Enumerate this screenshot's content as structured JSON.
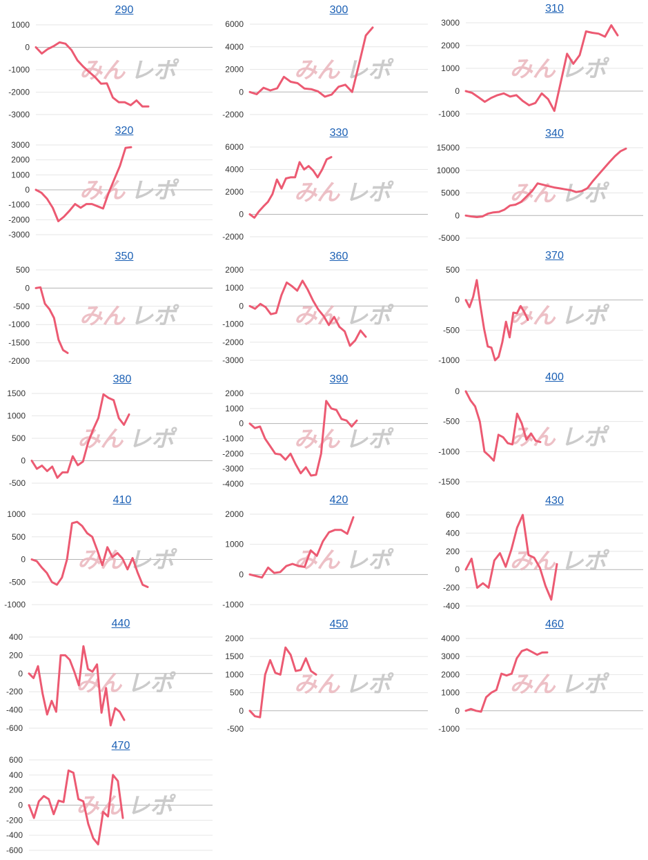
{
  "colors": {
    "series": "#ec5a72",
    "title": "#1a5fb4",
    "watermark_left": "#eab6bd",
    "watermark_right": "#c6c6c6"
  },
  "watermark": {
    "left": "みん",
    "right": "レポ"
  },
  "chart_data": [
    {
      "type": "line",
      "title": "290",
      "ylim": [
        -3000,
        1000
      ],
      "yticks": [
        1000,
        0,
        -1000,
        -2000,
        -3000
      ],
      "series": [
        {
          "values": [
            0,
            -280,
            -80,
            50,
            220,
            160,
            -120,
            -580,
            -860,
            -1100,
            -1330,
            -1620,
            -1610,
            -2240,
            -2450,
            -2450,
            -2580,
            -2370,
            -2640,
            -2640
          ]
        }
      ]
    },
    {
      "type": "line",
      "title": "300",
      "ylim": [
        -2000,
        6000
      ],
      "yticks": [
        6000,
        4000,
        2000,
        0,
        -2000
      ],
      "series": [
        {
          "values": [
            0,
            -200,
            370,
            140,
            320,
            1340,
            900,
            780,
            310,
            250,
            50,
            -420,
            -220,
            460,
            640,
            0,
            2450,
            5000,
            5700
          ]
        }
      ]
    },
    {
      "type": "line",
      "title": "310",
      "ylim": [
        -1000,
        3000
      ],
      "yticks": [
        3000,
        2000,
        1000,
        0,
        -1000
      ],
      "series": [
        {
          "values": [
            0,
            -80,
            -270,
            -470,
            -300,
            -180,
            -100,
            -240,
            -180,
            -430,
            -620,
            -520,
            -100,
            -350,
            -870,
            380,
            1640,
            1200,
            1580,
            2620,
            2560,
            2520,
            2390,
            2890,
            2450
          ]
        }
      ]
    },
    {
      "type": "line",
      "title": "320",
      "ylim": [
        -3000,
        3000
      ],
      "yticks": [
        3000,
        2000,
        1000,
        0,
        -1000,
        -2000,
        -3000
      ],
      "series": [
        {
          "values": [
            0,
            -200,
            -600,
            -1200,
            -2100,
            -1800,
            -1400,
            -950,
            -1200,
            -950,
            -950,
            -1100,
            -1250,
            -200,
            700,
            1600,
            2800,
            2850
          ]
        }
      ]
    },
    {
      "type": "line",
      "title": "330",
      "ylim": [
        -2000,
        6000
      ],
      "yticks": [
        6000,
        4000,
        2000,
        0,
        -2000
      ],
      "series": [
        {
          "values": [
            0,
            -300,
            250,
            700,
            1100,
            1800,
            3100,
            2300,
            3200,
            3300,
            3300,
            4650,
            4000,
            4300,
            3900,
            3300,
            4000,
            4900,
            5100
          ]
        }
      ]
    },
    {
      "type": "line",
      "title": "340",
      "ylim": [
        -5000,
        15000
      ],
      "yticks": [
        15000,
        10000,
        5000,
        0,
        -5000
      ],
      "series": [
        {
          "values": [
            0,
            -200,
            -350,
            -200,
            400,
            700,
            800,
            1300,
            2200,
            2400,
            3000,
            4200,
            5400,
            7100,
            6800,
            6500,
            6200,
            6000,
            5800,
            5600,
            5200,
            5400,
            6000,
            7600,
            9000,
            10400,
            11800,
            13100,
            14200,
            14800
          ]
        }
      ]
    },
    {
      "type": "line",
      "title": "350",
      "ylim": [
        -2000,
        500
      ],
      "yticks": [
        500,
        0,
        -500,
        -1000,
        -1500,
        -2000
      ],
      "series": [
        {
          "values": [
            0,
            20,
            -430,
            -580,
            -820,
            -1420,
            -1700,
            -1780
          ]
        }
      ]
    },
    {
      "type": "line",
      "title": "360",
      "ylim": [
        -3000,
        2000
      ],
      "yticks": [
        2000,
        1000,
        0,
        -1000,
        -2000,
        -3000
      ],
      "series": [
        {
          "values": [
            0,
            -150,
            120,
            -60,
            -450,
            -380,
            600,
            1300,
            1100,
            850,
            1400,
            900,
            300,
            -200,
            -550,
            -1050,
            -600,
            -1150,
            -1400,
            -2200,
            -1900,
            -1350,
            -1700
          ]
        }
      ]
    },
    {
      "type": "line",
      "title": "370",
      "ylim": [
        -1000,
        500
      ],
      "yticks": [
        500,
        0,
        -500,
        -1000
      ],
      "series": [
        {
          "values": [
            0,
            -120,
            50,
            330,
            -100,
            -480,
            -770,
            -790,
            -1000,
            -940,
            -700,
            -360,
            -620,
            -210,
            -220,
            -100,
            -200,
            -330
          ]
        }
      ]
    },
    {
      "type": "line",
      "title": "380",
      "ylim": [
        -500,
        1500
      ],
      "yticks": [
        1500,
        1000,
        500,
        0,
        -500
      ],
      "series": [
        {
          "values": [
            0,
            -180,
            -110,
            -230,
            -130,
            -380,
            -260,
            -260,
            100,
            -100,
            -20,
            400,
            700,
            950,
            1480,
            1400,
            1350,
            950,
            800,
            1030
          ]
        }
      ]
    },
    {
      "type": "line",
      "title": "390",
      "ylim": [
        -4000,
        2000
      ],
      "yticks": [
        2000,
        1000,
        0,
        -1000,
        -2000,
        -3000,
        -4000
      ],
      "series": [
        {
          "values": [
            0,
            -300,
            -200,
            -1000,
            -1500,
            -2000,
            -2050,
            -2400,
            -2000,
            -2700,
            -3300,
            -2900,
            -3450,
            -3400,
            -2000,
            1500,
            1000,
            900,
            300,
            200,
            -200,
            200
          ]
        }
      ]
    },
    {
      "type": "line",
      "title": "400",
      "ylim": [
        -1500,
        0
      ],
      "yticks": [
        0,
        -500,
        -1000,
        -1500
      ],
      "series": [
        {
          "values": [
            0,
            -150,
            -250,
            -500,
            -1000,
            -1070,
            -1150,
            -720,
            -760,
            -860,
            -880,
            -370,
            -530,
            -800,
            -700,
            -820,
            -840
          ]
        }
      ]
    },
    {
      "type": "line",
      "title": "410",
      "ylim": [
        -1000,
        1000
      ],
      "yticks": [
        1000,
        500,
        0,
        -500,
        -1000
      ],
      "series": [
        {
          "values": [
            0,
            -40,
            -180,
            -300,
            -500,
            -560,
            -400,
            0,
            800,
            830,
            740,
            580,
            500,
            200,
            -130,
            270,
            50,
            140,
            20,
            -220,
            30,
            -290,
            -560,
            -610
          ]
        }
      ]
    },
    {
      "type": "line",
      "title": "420",
      "ylim": [
        -1000,
        2000
      ],
      "yticks": [
        2000,
        1000,
        0,
        -1000
      ],
      "series": [
        {
          "values": [
            0,
            -50,
            -100,
            230,
            50,
            80,
            280,
            350,
            280,
            250,
            800,
            620,
            1100,
            1400,
            1480,
            1480,
            1350,
            1900
          ]
        }
      ]
    },
    {
      "type": "line",
      "title": "430",
      "ylim": [
        -400,
        600
      ],
      "yticks": [
        600,
        400,
        200,
        0,
        -200,
        -400
      ],
      "series": [
        {
          "values": [
            0,
            120,
            -200,
            -150,
            -200,
            100,
            180,
            30,
            220,
            460,
            600,
            160,
            130,
            20,
            -180,
            -330,
            60
          ]
        }
      ]
    },
    {
      "type": "line",
      "title": "440",
      "ylim": [
        -600,
        400
      ],
      "yticks": [
        400,
        200,
        0,
        -200,
        -400,
        -600
      ],
      "series": [
        {
          "values": [
            0,
            -50,
            80,
            -220,
            -450,
            -300,
            -420,
            200,
            200,
            150,
            20,
            -130,
            300,
            50,
            20,
            100,
            -430,
            -160,
            -570,
            -380,
            -420,
            -510
          ]
        }
      ]
    },
    {
      "type": "line",
      "title": "450",
      "ylim": [
        -500,
        2000
      ],
      "yticks": [
        2000,
        1500,
        1000,
        500,
        0,
        -500
      ],
      "series": [
        {
          "values": [
            0,
            -150,
            -180,
            1000,
            1400,
            1050,
            1000,
            1750,
            1550,
            1100,
            1130,
            1450,
            1100,
            1000
          ]
        }
      ]
    },
    {
      "type": "line",
      "title": "460",
      "ylim": [
        -1000,
        4000
      ],
      "yticks": [
        4000,
        3000,
        2000,
        1000,
        0,
        -1000
      ],
      "series": [
        {
          "values": [
            0,
            100,
            0,
            -50,
            750,
            1000,
            1150,
            2050,
            1950,
            2050,
            2900,
            3300,
            3400,
            3250,
            3100,
            3220,
            3230
          ]
        }
      ]
    },
    {
      "type": "line",
      "title": "470",
      "ylim": [
        -600,
        600
      ],
      "yticks": [
        600,
        400,
        200,
        0,
        -200,
        -400,
        -600
      ],
      "series": [
        {
          "values": [
            0,
            -170,
            50,
            120,
            80,
            -120,
            60,
            40,
            460,
            430,
            80,
            50,
            -250,
            -440,
            -520,
            -90,
            -150,
            400,
            320,
            -170
          ]
        }
      ]
    }
  ]
}
